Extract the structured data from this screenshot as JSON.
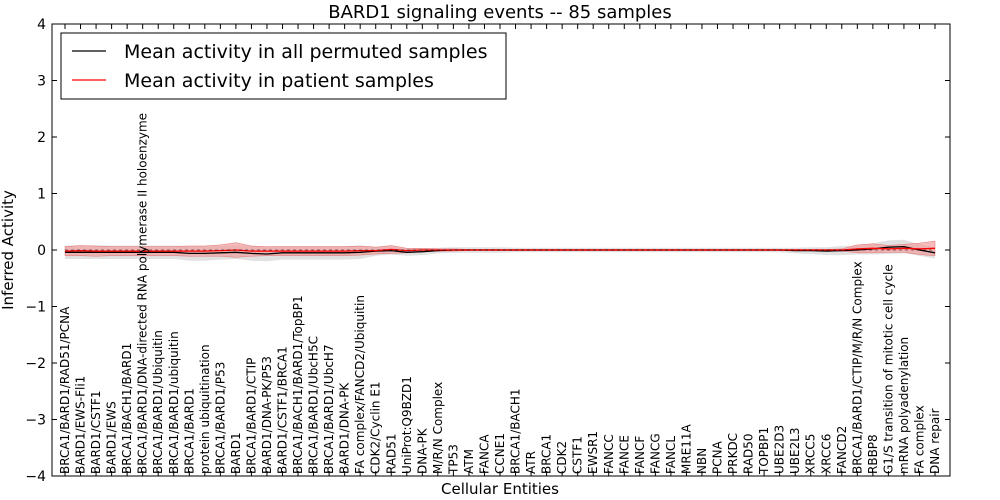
{
  "chart_data": {
    "type": "line",
    "title": "BARD1 signaling events -- 85 samples",
    "xlabel": "Cellular Entities",
    "ylabel": "Inferred Activity",
    "ylim": [
      -4,
      4
    ],
    "yticks": [
      "4",
      "3",
      "2",
      "1",
      "0",
      "−1",
      "−2",
      "−3",
      "−4"
    ],
    "legend_position": "top-left",
    "categories": [
      "BRCA1/BARD1/RAD51/PCNA",
      "BARD1/EWS-Fli1",
      "BARD1/CSTF1",
      "BARD1/EWS",
      "BRCA1/BACH1/BARD1",
      "BRCA1/BARD1/DNA-directed RNA polymerase II holoenzyme",
      "BRCA1/BARD1/Ubiquitin",
      "BRCA1/BARD1/ubiquitin",
      "BRCA1/BARD1",
      "protein ubiquitination",
      "BRCA1/BARD1/P53",
      "BARD1",
      "BRCA1/BARD1/CTIP",
      "BARD1/DNA-PK/P53",
      "BARD1/CSTF1/BRCA1",
      "BRCA1/BACH1/BARD1/TopBP1",
      "BRCA1/BARD1/UbcH5C",
      "BRCA1/BARD1/UbcH7",
      "BARD1/DNA-PK",
      "FA complex/FANCD2/Ubiquitin",
      "CDK2/Cyclin E1",
      "RAD51",
      "UniProt:Q9BZD1",
      "DNA-PK",
      "M/R/N Complex",
      "TP53",
      "ATM",
      "FANCA",
      "CCNE1",
      "BRCA1/BACH1",
      "ATR",
      "BRCA1",
      "CDK2",
      "CSTF1",
      "EWSR1",
      "FANCC",
      "FANCE",
      "FANCF",
      "FANCG",
      "FANCL",
      "MRE11A",
      "NBN",
      "PCNA",
      "PRKDC",
      "RAD50",
      "TOPBP1",
      "UBE2D3",
      "UBE2L3",
      "XRCC5",
      "XRCC6",
      "FANCD2",
      "BRCA1/BARD1/CTIP/M/R/N Complex",
      "RBBP8",
      "G1/S transition of mitotic cell cycle",
      "mRNA polyadenylation",
      "FA complex",
      "DNA repair"
    ],
    "series": [
      {
        "name": "Mean activity in all permuted samples",
        "color": "#000000",
        "values": [
          -0.04,
          -0.04,
          -0.04,
          -0.04,
          -0.04,
          -0.04,
          -0.04,
          -0.04,
          -0.06,
          -0.06,
          -0.05,
          -0.04,
          -0.06,
          -0.07,
          -0.05,
          -0.05,
          -0.05,
          -0.05,
          -0.05,
          -0.04,
          -0.02,
          -0.01,
          -0.04,
          -0.03,
          -0.01,
          0.0,
          0.0,
          0.0,
          0.0,
          0.0,
          0.0,
          0.0,
          0.0,
          0.0,
          0.0,
          0.0,
          0.0,
          0.0,
          0.0,
          0.0,
          0.0,
          0.0,
          0.0,
          0.0,
          0.0,
          0.0,
          0.0,
          -0.01,
          -0.01,
          -0.02,
          -0.01,
          0.0,
          0.02,
          0.05,
          0.06,
          0.0,
          -0.05
        ],
        "band": [
          0.12,
          0.12,
          0.12,
          0.12,
          0.12,
          0.12,
          0.12,
          0.12,
          0.13,
          0.13,
          0.12,
          0.12,
          0.13,
          0.13,
          0.12,
          0.12,
          0.12,
          0.12,
          0.12,
          0.12,
          0.08,
          0.07,
          0.06,
          0.06,
          0.05,
          0.05,
          0.05,
          0.05,
          0.05,
          0.04,
          0.04,
          0.04,
          0.04,
          0.04,
          0.04,
          0.04,
          0.04,
          0.04,
          0.04,
          0.04,
          0.04,
          0.04,
          0.04,
          0.04,
          0.04,
          0.04,
          0.04,
          0.05,
          0.06,
          0.07,
          0.08,
          0.08,
          0.1,
          0.12,
          0.12,
          0.1,
          0.1
        ]
      },
      {
        "name": "Mean activity in patient samples",
        "color": "#ff0000",
        "fill": "#f2a0a0",
        "values": [
          -0.02,
          -0.01,
          -0.02,
          -0.02,
          -0.02,
          -0.02,
          -0.02,
          -0.02,
          -0.02,
          -0.02,
          -0.01,
          0.0,
          -0.02,
          -0.02,
          -0.02,
          -0.02,
          -0.02,
          -0.02,
          -0.02,
          -0.01,
          -0.01,
          0.01,
          -0.01,
          0.0,
          0.0,
          0.0,
          0.0,
          0.0,
          0.0,
          0.0,
          0.0,
          0.0,
          0.0,
          0.0,
          0.0,
          0.0,
          0.0,
          0.0,
          0.0,
          0.0,
          0.0,
          0.0,
          0.0,
          0.0,
          0.0,
          0.0,
          0.0,
          0.0,
          0.0,
          0.0,
          0.0,
          0.02,
          0.03,
          0.02,
          0.03,
          0.02,
          0.03
        ],
        "band": [
          0.08,
          0.09,
          0.09,
          0.08,
          0.08,
          0.08,
          0.08,
          0.08,
          0.09,
          0.09,
          0.1,
          0.13,
          0.09,
          0.08,
          0.08,
          0.08,
          0.08,
          0.08,
          0.08,
          0.08,
          0.06,
          0.07,
          0.04,
          0.03,
          0.02,
          0.02,
          0.01,
          0.01,
          0.01,
          0.01,
          0.01,
          0.01,
          0.01,
          0.01,
          0.01,
          0.01,
          0.01,
          0.01,
          0.01,
          0.01,
          0.01,
          0.01,
          0.01,
          0.01,
          0.01,
          0.01,
          0.01,
          0.01,
          0.01,
          0.01,
          0.02,
          0.07,
          0.08,
          0.06,
          0.07,
          0.1,
          0.13
        ]
      }
    ]
  }
}
